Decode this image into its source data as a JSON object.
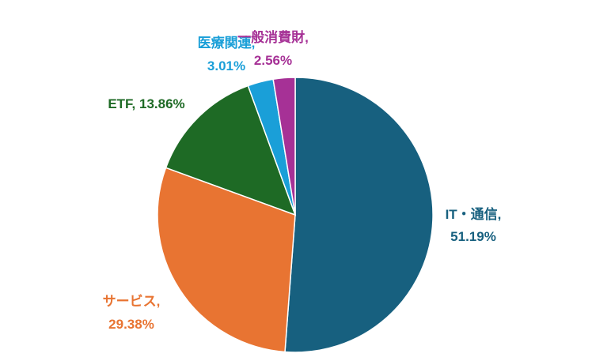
{
  "chart_data": {
    "type": "pie",
    "title": "",
    "slices": [
      {
        "label": "IT・通信",
        "value": 51.19,
        "display_value": "51.19%",
        "color": "#17607f"
      },
      {
        "label": "サービス",
        "value": 29.38,
        "display_value": "29.38%",
        "color": "#e87432"
      },
      {
        "label": "ETF",
        "value": 13.86,
        "display_value": "13.86%",
        "color": "#1e6a25"
      },
      {
        "label": "医療関連",
        "value": 3.01,
        "display_value": "3.01%",
        "color": "#1a9fd8"
      },
      {
        "label": "一般消費財",
        "value": 2.56,
        "display_value": "2.56%",
        "color": "#a63196"
      }
    ],
    "start_angle": "12 o'clock",
    "direction": "clockwise",
    "legend": "none",
    "data_labels": "category name and percent, outside slices"
  }
}
